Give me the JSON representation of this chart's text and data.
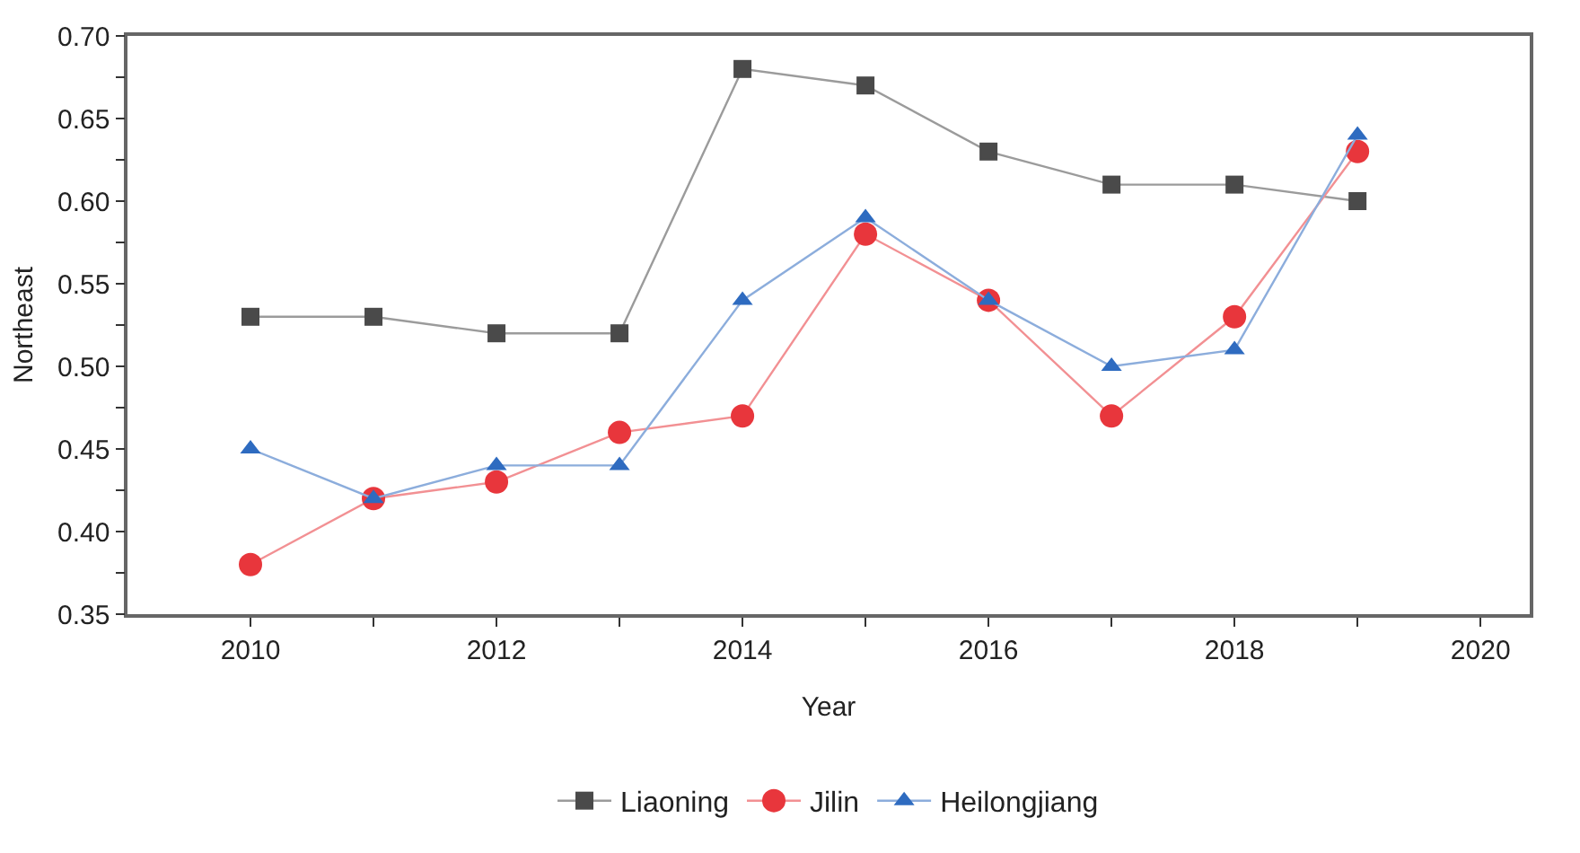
{
  "chart_data": {
    "type": "line",
    "xlabel": "Year",
    "ylabel": "Northeast",
    "x": [
      2010,
      2011,
      2012,
      2013,
      2014,
      2015,
      2016,
      2017,
      2018,
      2019
    ],
    "series": [
      {
        "name": "Liaoning",
        "color": "#4a4a4a",
        "marker": "square",
        "values": [
          0.53,
          0.53,
          0.52,
          0.52,
          0.68,
          0.67,
          0.63,
          0.61,
          0.61,
          0.6
        ]
      },
      {
        "name": "Jilin",
        "color": "#e8363c",
        "marker": "circle",
        "values": [
          0.38,
          0.42,
          0.43,
          0.46,
          0.47,
          0.58,
          0.54,
          0.47,
          0.53,
          0.63
        ]
      },
      {
        "name": "Heilongjiang",
        "color": "#2e6bc0",
        "marker": "triangle",
        "values": [
          0.45,
          0.42,
          0.44,
          0.44,
          0.54,
          0.59,
          0.54,
          0.5,
          0.51,
          0.64
        ]
      }
    ],
    "xlim": [
      2009,
      2020.4
    ],
    "xticks": [
      2010,
      {
        "value": 2011,
        "label": null
      },
      2012,
      {
        "value": 2013,
        "label": null
      },
      2014,
      {
        "value": 2015,
        "label": null
      },
      2016,
      {
        "value": 2017,
        "label": null
      },
      2018,
      {
        "value": 2019,
        "label": null
      },
      2020
    ],
    "ylim": [
      0.35,
      0.7
    ],
    "yticks": [
      {
        "value": 0.35,
        "label": "0.35"
      },
      {
        "value": 0.375,
        "label": null
      },
      {
        "value": 0.4,
        "label": "0.40"
      },
      {
        "value": 0.425,
        "label": null
      },
      {
        "value": 0.45,
        "label": "0.45"
      },
      {
        "value": 0.475,
        "label": null
      },
      {
        "value": 0.5,
        "label": "0.50"
      },
      {
        "value": 0.525,
        "label": null
      },
      {
        "value": 0.55,
        "label": "0.55"
      },
      {
        "value": 0.575,
        "label": null
      },
      {
        "value": 0.6,
        "label": "0.60"
      },
      {
        "value": 0.625,
        "label": null
      },
      {
        "value": 0.65,
        "label": "0.65"
      },
      {
        "value": 0.675,
        "label": null
      },
      {
        "value": 0.7,
        "label": "0.70"
      }
    ],
    "legend": "bottom",
    "line_style": "solid"
  }
}
